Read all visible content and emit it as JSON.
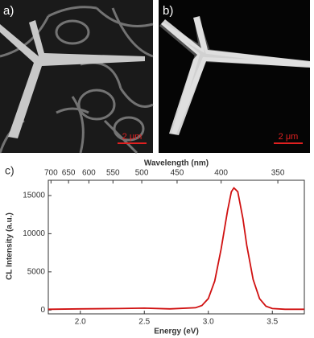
{
  "panels": [
    {
      "label": "a)",
      "scale_bar": "2 μm"
    },
    {
      "label": "b)",
      "scale_bar": "2 μm"
    }
  ],
  "chart_data": {
    "type": "line",
    "label": "c)",
    "x_label": "Energy (eV)",
    "y_label": "CL Intensity (a.u.)",
    "x2_label": "Wavelength (nm)",
    "x": [
      1.75,
      2.0,
      2.3,
      2.5,
      2.7,
      2.9,
      2.95,
      3.0,
      3.05,
      3.1,
      3.15,
      3.18,
      3.2,
      3.23,
      3.27,
      3.3,
      3.35,
      3.4,
      3.45,
      3.5,
      3.6,
      3.75
    ],
    "series": [
      {
        "color": "#d01010",
        "values": [
          100,
          150,
          200,
          250,
          150,
          300,
          600,
          1500,
          3800,
          8000,
          13000,
          15500,
          16000,
          15500,
          12000,
          8500,
          4000,
          1500,
          500,
          200,
          100,
          100
        ]
      }
    ],
    "xlim": [
      1.75,
      3.75
    ],
    "ylim": [
      -500,
      17000
    ],
    "xticks": [
      {
        "value": 2,
        "label": "2.0"
      },
      {
        "value": 2.5,
        "label": "2.5"
      },
      {
        "value": 3,
        "label": "3.0"
      },
      {
        "value": 3.5,
        "label": "3.5"
      }
    ],
    "yticks": [
      0,
      5000,
      10000,
      15000
    ],
    "x2ticks": [
      {
        "value": 1.771,
        "label": "700"
      },
      {
        "value": 1.908,
        "label": "650"
      },
      {
        "value": 2.067,
        "label": "600"
      },
      {
        "value": 2.255,
        "label": "550"
      },
      {
        "value": 2.48,
        "label": "500"
      },
      {
        "value": 2.756,
        "label": "450"
      },
      {
        "value": 3.1,
        "label": "400"
      },
      {
        "value": 3.543,
        "label": "350"
      }
    ]
  }
}
